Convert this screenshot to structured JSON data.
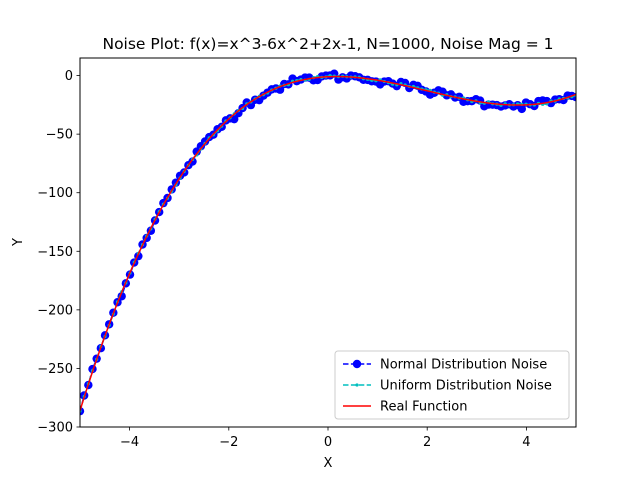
{
  "chart_data": {
    "type": "line",
    "title": "Noise Plot: f(x)=x^3-6x^2+2x-1, N=1000, Noise Mag = 1",
    "xlabel": "X",
    "ylabel": "Y",
    "xlim": [
      -5,
      5
    ],
    "ylim": [
      -300,
      15
    ],
    "xticks": [
      -4,
      -2,
      0,
      2,
      4
    ],
    "yticks": [
      0,
      -50,
      -100,
      -150,
      -200,
      -250,
      -300
    ],
    "xtick_labels": [
      "−4",
      "−2",
      "0",
      "2",
      "4"
    ],
    "ytick_labels": [
      "0",
      "−50",
      "−100",
      "−150",
      "−200",
      "−250",
      "−300"
    ],
    "grid": false,
    "legend_position": "lower-right",
    "function": {
      "a3": 1,
      "a2": -6,
      "a1": 2,
      "a0": -1
    },
    "n_points": 1000,
    "noise_magnitude": 1,
    "series": [
      {
        "name": "Normal Distribution Noise",
        "color": "#0000ff",
        "linestyle": "dashed",
        "marker": "circle"
      },
      {
        "name": "Uniform Distribution Noise",
        "color": "#00bfbf",
        "linestyle": "dashed",
        "marker": "dot"
      },
      {
        "name": "Real Function",
        "color": "#ff0000",
        "linestyle": "solid",
        "marker": "none"
      }
    ]
  }
}
